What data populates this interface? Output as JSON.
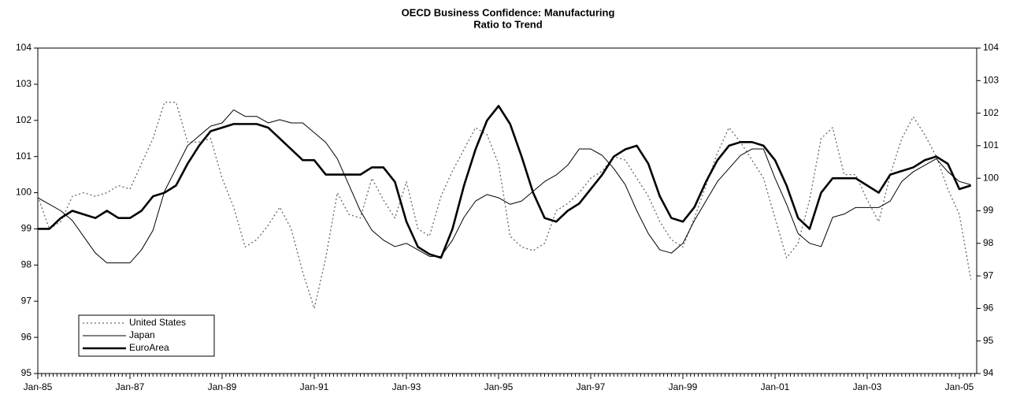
{
  "chart_data": {
    "type": "line",
    "title": "OECD Business Confidence: Manufacturing",
    "subtitle": "Ratio to Trend",
    "categories": [
      "Jan-85",
      null,
      null,
      null,
      null,
      null,
      null,
      null,
      "Jan-87",
      null,
      null,
      null,
      null,
      null,
      null,
      null,
      "Jan-89",
      null,
      null,
      null,
      null,
      null,
      null,
      null,
      "Jan-91",
      null,
      null,
      null,
      null,
      null,
      null,
      null,
      "Jan-93",
      null,
      null,
      null,
      null,
      null,
      null,
      null,
      "Jan-95",
      null,
      null,
      null,
      null,
      null,
      null,
      null,
      "Jan-97",
      null,
      null,
      null,
      null,
      null,
      null,
      null,
      "Jan-99",
      null,
      null,
      null,
      null,
      null,
      null,
      null,
      "Jan-01",
      null,
      null,
      null,
      null,
      null,
      null,
      null,
      "Jan-03",
      null,
      null,
      null,
      null,
      null,
      null,
      null,
      "Jan-05",
      null
    ],
    "series": [
      {
        "name": "United States",
        "color": "#666666",
        "style": "dotted",
        "width": 1.3,
        "axis": "y",
        "values": [
          99.9,
          99.0,
          99.2,
          99.9,
          100.0,
          99.9,
          100.0,
          100.2,
          100.1,
          100.8,
          101.5,
          102.5,
          102.5,
          101.4,
          101.4,
          101.5,
          100.4,
          99.6,
          98.5,
          98.7,
          99.1,
          99.6,
          99.0,
          97.8,
          96.8,
          98.2,
          100.0,
          99.4,
          99.3,
          100.4,
          99.8,
          99.3,
          100.3,
          99.0,
          98.8,
          99.9,
          100.6,
          101.2,
          101.8,
          101.6,
          100.8,
          98.8,
          98.5,
          98.4,
          98.6,
          99.5,
          99.7,
          100.0,
          100.4,
          100.6,
          101.0,
          100.9,
          100.4,
          99.9,
          99.2,
          98.7,
          98.5,
          99.3,
          100.2,
          101.1,
          101.8,
          101.4,
          100.9,
          100.4,
          99.3,
          98.2,
          98.6,
          99.8,
          101.5,
          101.8,
          100.5,
          100.5,
          99.8,
          99.2,
          100.5,
          101.5,
          102.1,
          101.6,
          101.0,
          100.1,
          99.4,
          97.6
        ]
      },
      {
        "name": "Japan",
        "color": "#000000",
        "style": "solid",
        "width": 1,
        "axis": "y2",
        "values": [
          99.4,
          99.2,
          99.0,
          98.7,
          98.2,
          97.7,
          97.4,
          97.4,
          97.4,
          97.8,
          98.4,
          99.6,
          100.3,
          101.0,
          101.3,
          101.6,
          101.7,
          102.1,
          101.9,
          101.9,
          101.7,
          101.8,
          101.7,
          101.7,
          101.4,
          101.1,
          100.6,
          99.8,
          99.0,
          98.4,
          98.1,
          97.9,
          98.0,
          97.8,
          97.6,
          97.6,
          98.1,
          98.8,
          99.3,
          99.5,
          99.4,
          99.2,
          99.3,
          99.6,
          99.9,
          100.1,
          100.4,
          100.9,
          100.9,
          100.7,
          100.3,
          99.8,
          99.0,
          98.3,
          97.8,
          97.7,
          98.0,
          98.7,
          99.3,
          99.9,
          100.3,
          100.7,
          100.9,
          100.9,
          100.0,
          99.2,
          98.3,
          98.0,
          97.9,
          98.8,
          98.9,
          99.1,
          99.1,
          99.1,
          99.3,
          99.9,
          100.2,
          100.4,
          100.6,
          100.2,
          99.9,
          99.8
        ]
      },
      {
        "name": "EuroArea",
        "color": "#000000",
        "style": "solid",
        "width": 2.6,
        "axis": "y",
        "values": [
          99.0,
          99.0,
          99.3,
          99.5,
          99.4,
          99.3,
          99.5,
          99.3,
          99.3,
          99.5,
          99.9,
          100.0,
          100.2,
          100.8,
          101.3,
          101.7,
          101.8,
          101.9,
          101.9,
          101.9,
          101.8,
          101.5,
          101.2,
          100.9,
          100.9,
          100.5,
          100.5,
          100.5,
          100.5,
          100.7,
          100.7,
          100.3,
          99.2,
          98.5,
          98.3,
          98.2,
          99.0,
          100.2,
          101.2,
          102.0,
          102.4,
          101.9,
          101.0,
          100.0,
          99.3,
          99.2,
          99.5,
          99.7,
          100.1,
          100.5,
          101.0,
          101.2,
          101.3,
          100.8,
          99.9,
          99.3,
          99.2,
          99.6,
          100.3,
          100.9,
          101.3,
          101.4,
          101.4,
          101.3,
          100.9,
          100.2,
          99.3,
          99.0,
          100.0,
          100.4,
          100.4,
          100.4,
          100.2,
          100.0,
          100.5,
          100.6,
          100.7,
          100.9,
          101.0,
          100.8,
          100.1,
          100.2
        ]
      }
    ],
    "ylim": [
      95,
      104
    ],
    "yticks": [
      95,
      96,
      97,
      98,
      99,
      100,
      101,
      102,
      103,
      104
    ],
    "y2lim": [
      94,
      104
    ],
    "y2ticks": [
      94,
      95,
      96,
      97,
      98,
      99,
      100,
      101,
      102,
      103,
      104
    ],
    "grid": false,
    "legend": "lower left"
  }
}
